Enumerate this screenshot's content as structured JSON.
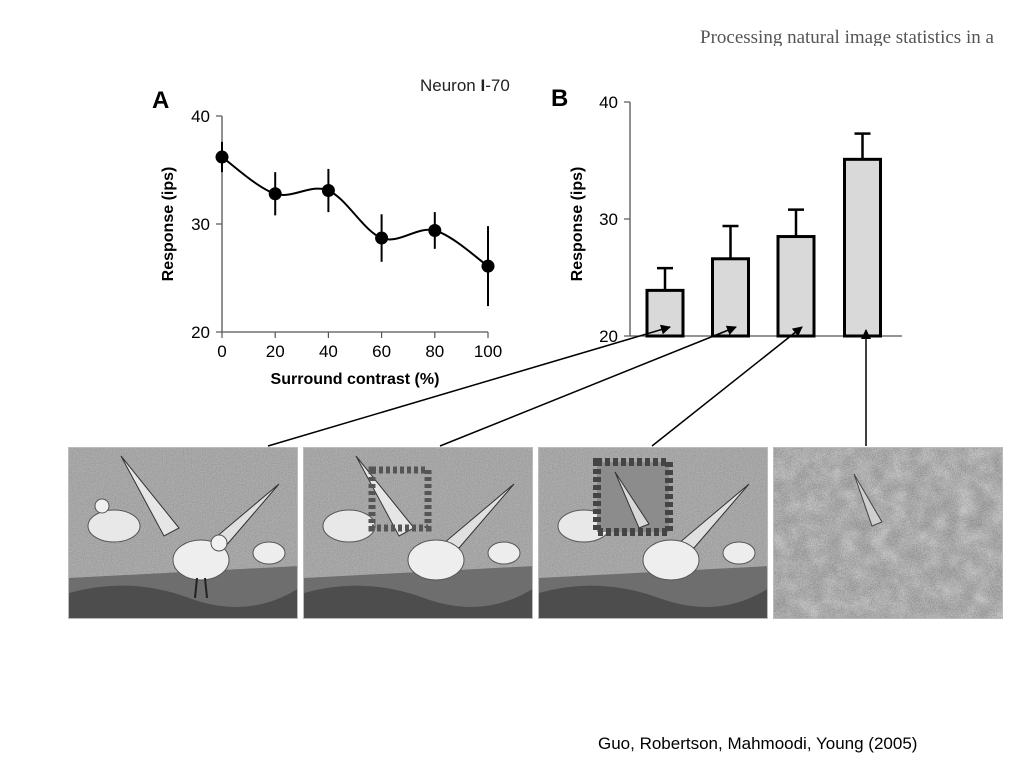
{
  "header": {
    "running_title": "Processing natural image statistics in a"
  },
  "citation": "Guo, Robertson, Mahmoodi, Young (2005)",
  "colors": {
    "bar_fill": "#d9d9d9",
    "line": "#000000",
    "axis": "#555555",
    "header_text": "#555555"
  },
  "chart_data": [
    {
      "panel": "A",
      "type": "line",
      "annotation": "Neuron I-70",
      "annotation_parts": {
        "prefix": "Neuron ",
        "bold": "I",
        "suffix": "-70"
      },
      "xlabel": "Surround contrast (%)",
      "ylabel": "Response (ips)",
      "x": [
        0,
        20,
        40,
        60,
        80,
        100
      ],
      "y": [
        36.2,
        32.8,
        33.1,
        28.7,
        29.4,
        26.1
      ],
      "error": [
        1.4,
        2.0,
        2.0,
        2.2,
        1.7,
        3.7
      ],
      "xlim": [
        0,
        100
      ],
      "ylim": [
        20,
        40
      ],
      "xticks": [
        0,
        20,
        40,
        60,
        80,
        100
      ],
      "yticks": [
        20,
        30,
        40
      ],
      "grid": false,
      "legend": "none"
    },
    {
      "panel": "B",
      "type": "bar",
      "ylabel": "Response (ips)",
      "categories": [
        "",
        "",
        "",
        ""
      ],
      "values": [
        23.9,
        26.6,
        28.5,
        35.1
      ],
      "error": [
        1.9,
        2.8,
        2.3,
        2.2
      ],
      "ylim": [
        20,
        40
      ],
      "yticks": [
        20,
        30,
        40
      ],
      "grid": false,
      "legend": "none"
    }
  ],
  "images": {
    "count": 4,
    "items": [
      {
        "name": "gulls-original"
      },
      {
        "name": "gulls-surround-low-contrast"
      },
      {
        "name": "gulls-surround-mid-contrast"
      },
      {
        "name": "gulls-noise-full-contrast"
      }
    ]
  }
}
